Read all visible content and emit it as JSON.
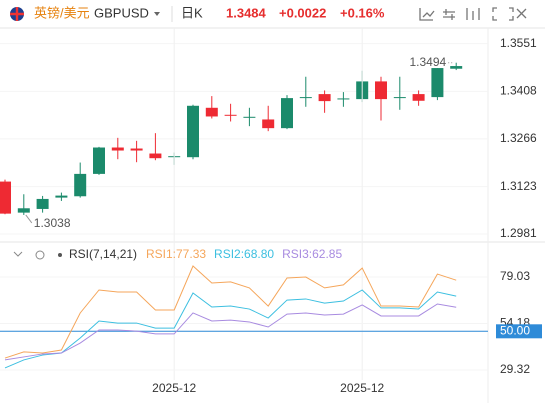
{
  "header": {
    "name": "英镑/美元",
    "symbol": "GBPUSD",
    "period": "日K",
    "price": "1.3484",
    "change": "+0.0022",
    "change_pct": "+0.16%"
  },
  "chart_data": [
    {
      "type": "candlestick",
      "up_color": "#1b8a6b",
      "down_color": "#ee2a33",
      "open": [
        1.3138,
        1.3045,
        1.3056,
        1.309,
        1.3094,
        1.3161,
        1.324,
        1.3237,
        1.3222,
        1.3211,
        1.3211,
        1.3359,
        1.3338,
        1.333,
        1.3324,
        1.3298,
        1.3389,
        1.34,
        1.3385,
        1.3385,
        1.3438,
        1.3389,
        1.34,
        1.3391,
        1.3476
      ],
      "high": [
        1.3144,
        1.31,
        1.3095,
        1.3105,
        1.3195,
        1.3242,
        1.3269,
        1.326,
        1.3283,
        1.3225,
        1.3368,
        1.3394,
        1.3371,
        1.3359,
        1.3365,
        1.3397,
        1.3452,
        1.3411,
        1.3406,
        1.347,
        1.3452,
        1.3452,
        1.3411,
        1.3478,
        1.3494
      ],
      "low": [
        1.304,
        1.3038,
        1.3045,
        1.308,
        1.309,
        1.3158,
        1.3205,
        1.3196,
        1.3202,
        1.3188,
        1.3205,
        1.3327,
        1.3318,
        1.3304,
        1.3289,
        1.3295,
        1.3362,
        1.3344,
        1.3362,
        1.3376,
        1.3321,
        1.3353,
        1.3365,
        1.3382,
        1.3472
      ],
      "close": [
        1.3042,
        1.3058,
        1.3086,
        1.3096,
        1.3161,
        1.324,
        1.3231,
        1.3231,
        1.3208,
        1.3214,
        1.3365,
        1.3333,
        1.3336,
        1.3332,
        1.3298,
        1.3388,
        1.3391,
        1.3379,
        1.3387,
        1.3438,
        1.3385,
        1.3391,
        1.338,
        1.3478,
        1.3484
      ],
      "ylim": [
        1.2963,
        1.358
      ],
      "yticks": [
        1.3551,
        1.3408,
        1.3266,
        1.3123,
        1.2981
      ],
      "grid": true,
      "annotations": [
        {
          "label": "1.3494",
          "value": 1.3494
        },
        {
          "label": "1.3038",
          "value": 1.3038
        }
      ]
    },
    {
      "type": "line",
      "title": "RSI(7,14,21)",
      "categories": [
        null,
        null,
        null,
        null,
        null,
        null,
        null,
        null,
        null,
        "2025-12",
        null,
        null,
        null,
        null,
        null,
        null,
        null,
        null,
        null,
        "2025-12",
        null,
        null,
        null,
        null,
        null
      ],
      "series": [
        {
          "name": "RSI1:77.33",
          "color": "#f5a65b",
          "values": [
            35.7,
            39.0,
            38.4,
            40.0,
            59.8,
            72.1,
            71.0,
            71.0,
            61.4,
            61.4,
            84.9,
            75.8,
            76.4,
            73.2,
            63.5,
            78.5,
            79.0,
            73.2,
            74.8,
            83.8,
            63.5,
            63.5,
            63.0,
            80.6,
            77.33
          ]
        },
        {
          "name": "RSI2:68.80",
          "color": "#3cbfe0",
          "values": [
            30.4,
            34.7,
            37.3,
            38.4,
            46.4,
            55.5,
            54.4,
            54.4,
            51.7,
            51.7,
            70.5,
            63.0,
            63.5,
            61.9,
            57.1,
            66.7,
            67.3,
            65.1,
            66.2,
            72.1,
            62.5,
            62.5,
            61.9,
            71.0,
            68.8
          ]
        },
        {
          "name": "RSI3:62.85",
          "color": "#a88be0",
          "values": [
            34.7,
            36.3,
            37.9,
            38.4,
            43.7,
            50.7,
            50.7,
            50.1,
            48.6,
            48.6,
            59.8,
            55.5,
            56.0,
            55.0,
            52.3,
            59.2,
            59.8,
            58.7,
            59.2,
            64.1,
            58.2,
            58.2,
            58.2,
            64.6,
            62.85
          ]
        }
      ],
      "ylim": [
        23.97,
        87.05
      ],
      "yticks": [
        79.03,
        54.18,
        {
          "value": 50,
          "label": "50.00"
        },
        29.32
      ],
      "grid": true,
      "reference_line": {
        "value": 50,
        "color": "#2e8bd8"
      }
    }
  ]
}
